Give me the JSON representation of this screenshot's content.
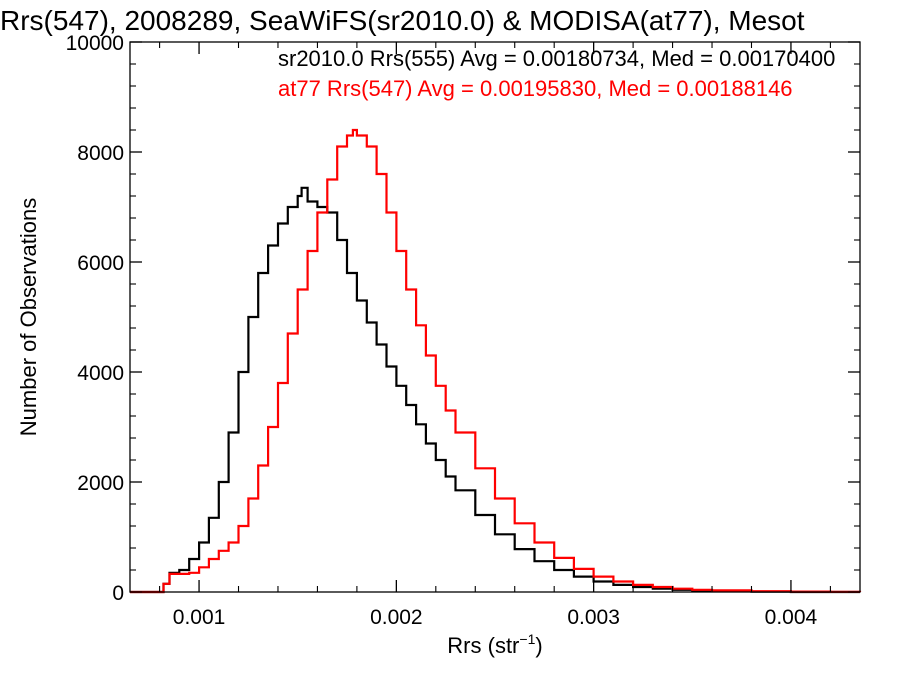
{
  "chart_data": {
    "type": "line",
    "title": "Rrs(547), 2008289, SeaWiFS(sr2010.0) & MODISA(at77), Mesot",
    "xlabel": {
      "main": "Rrs (str",
      "superscript": "−1",
      "close": ")"
    },
    "ylabel": "Number of Observations",
    "xlim": [
      0.00065,
      0.00435
    ],
    "ylim": [
      0,
      10000
    ],
    "x_ticks": [
      {
        "value": 0.001,
        "label": "0.001"
      },
      {
        "value": 0.002,
        "label": "0.002"
      },
      {
        "value": 0.003,
        "label": "0.003"
      },
      {
        "value": 0.004,
        "label": "0.004"
      }
    ],
    "y_ticks": [
      {
        "value": 0,
        "label": "0"
      },
      {
        "value": 2000,
        "label": "2000"
      },
      {
        "value": 4000,
        "label": "4000"
      },
      {
        "value": 6000,
        "label": "6000"
      },
      {
        "value": 8000,
        "label": "8000"
      },
      {
        "value": 10000,
        "label": "10000"
      }
    ],
    "grid": false,
    "step_style": "histogram",
    "annotations": [
      {
        "text": "sr2010.0 Rrs(555) Avg = 0.00180734, Med = 0.00170400",
        "color": "#000000"
      },
      {
        "text": "at77 Rrs(547) Avg = 0.00195830, Med = 0.00188146",
        "color": "#ff0000"
      }
    ],
    "series": [
      {
        "color": "#000000",
        "x": [
          0.00065,
          0.0008,
          0.00082,
          0.00085,
          0.0009,
          0.00095,
          0.001,
          0.00105,
          0.0011,
          0.00115,
          0.0012,
          0.00125,
          0.0013,
          0.00135,
          0.0014,
          0.00145,
          0.0015,
          0.00152,
          0.00155,
          0.0016,
          0.00165,
          0.0017,
          0.00175,
          0.0018,
          0.00185,
          0.0019,
          0.00195,
          0.002,
          0.00205,
          0.0021,
          0.00215,
          0.0022,
          0.00225,
          0.0023,
          0.0024,
          0.0025,
          0.0026,
          0.0027,
          0.0028,
          0.0029,
          0.003,
          0.0031,
          0.0032,
          0.0033,
          0.0034,
          0.0035,
          0.0036,
          0.0038,
          0.004,
          0.0042,
          0.00435
        ],
        "y": [
          0,
          0,
          150,
          350,
          400,
          600,
          900,
          1350,
          2000,
          2900,
          4000,
          5000,
          5800,
          6300,
          6700,
          7000,
          7200,
          7350,
          7100,
          7000,
          6900,
          6400,
          5800,
          5300,
          4900,
          4500,
          4100,
          3750,
          3400,
          3050,
          2700,
          2400,
          2100,
          1850,
          1400,
          1050,
          780,
          560,
          400,
          280,
          190,
          130,
          90,
          60,
          40,
          25,
          15,
          5,
          0,
          0,
          0
        ]
      },
      {
        "color": "#ff0000",
        "x": [
          0.00065,
          0.0008,
          0.00082,
          0.00085,
          0.0009,
          0.00095,
          0.001,
          0.00105,
          0.0011,
          0.00115,
          0.0012,
          0.00125,
          0.0013,
          0.00135,
          0.0014,
          0.00145,
          0.0015,
          0.00155,
          0.0016,
          0.00165,
          0.0017,
          0.00175,
          0.00178,
          0.0018,
          0.00185,
          0.0019,
          0.00195,
          0.002,
          0.00205,
          0.0021,
          0.00215,
          0.0022,
          0.00225,
          0.0023,
          0.0024,
          0.0025,
          0.0026,
          0.0027,
          0.0028,
          0.0029,
          0.003,
          0.0031,
          0.0032,
          0.0033,
          0.0034,
          0.0035,
          0.0036,
          0.0038,
          0.004,
          0.0042,
          0.00435
        ],
        "y": [
          0,
          0,
          150,
          330,
          330,
          350,
          450,
          600,
          750,
          900,
          1200,
          1700,
          2300,
          3000,
          3800,
          4700,
          5500,
          6200,
          6900,
          7500,
          8100,
          8300,
          8400,
          8300,
          8100,
          7600,
          6900,
          6200,
          5500,
          4850,
          4300,
          3750,
          3300,
          2900,
          2250,
          1700,
          1250,
          900,
          620,
          420,
          280,
          190,
          130,
          90,
          60,
          40,
          30,
          15,
          8,
          3,
          0
        ]
      }
    ]
  }
}
